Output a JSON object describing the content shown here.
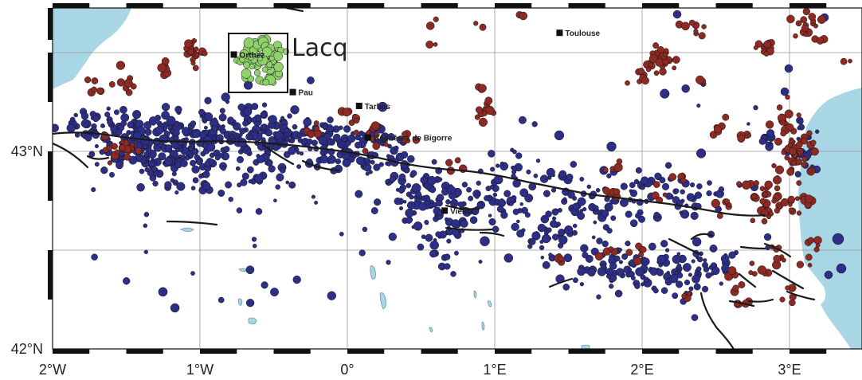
{
  "map": {
    "lon_range": [
      -2,
      3.5
    ],
    "lat_range": [
      42,
      43.6
    ],
    "x_ticks": [
      {
        "value": -2,
        "label": "2°W"
      },
      {
        "value": -1,
        "label": "1°W"
      },
      {
        "value": 0,
        "label": "0°"
      },
      {
        "value": 1,
        "label": "1°E"
      },
      {
        "value": 2,
        "label": "2°E"
      },
      {
        "value": 3,
        "label": "3°E"
      }
    ],
    "y_ticks": [
      {
        "value": 43,
        "label": "43°N"
      },
      {
        "value": 42,
        "label": "42°N"
      }
    ],
    "colors": {
      "sea": "#a9d6e5",
      "cluster_blue": "#2d2f86",
      "cluster_red": "#8e2a24",
      "cluster_green": "#8fd26b",
      "fault": "#1a1a1a",
      "grid": "#999999"
    },
    "cities": [
      {
        "name": "Toulouse",
        "lon": 1.44,
        "lat": 43.6
      },
      {
        "name": "Orthez",
        "lon": -0.77,
        "lat": 43.49
      },
      {
        "name": "Pau",
        "lon": -0.37,
        "lat": 43.3
      },
      {
        "name": "Tarbes",
        "lon": 0.08,
        "lat": 43.23
      },
      {
        "name": "Bagnères de Bigorre",
        "lon": 0.14,
        "lat": 43.07
      },
      {
        "name": "Vielha",
        "lon": 0.66,
        "lat": 42.7
      }
    ],
    "highlight": {
      "label": "Lacq",
      "lon_range": [
        -0.82,
        -0.42
      ],
      "lat_range": [
        43.3,
        43.6
      ]
    }
  }
}
